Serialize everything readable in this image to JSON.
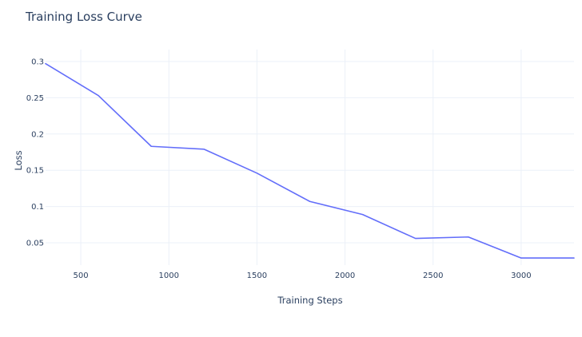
{
  "chart_data": {
    "type": "line",
    "title": "Training Loss Curve",
    "xlabel": "Training Steps",
    "ylabel": "Loss",
    "xlim": [
      300,
      3300
    ],
    "ylim": [
      0.02,
      0.3
    ],
    "x_ticks": [
      500,
      1000,
      1500,
      2000,
      2500,
      3000
    ],
    "x_tick_labels": [
      "500",
      "1000",
      "1500",
      "2000",
      "2500",
      "3000"
    ],
    "y_ticks": [
      0.05,
      0.1,
      0.15,
      0.2,
      0.25,
      0.3
    ],
    "y_tick_labels": [
      "0.05",
      "0.1",
      "0.15",
      "0.2",
      "0.25",
      "0.3"
    ],
    "grid": true,
    "series": [
      {
        "x": [
          300,
          600,
          900,
          1200,
          1500,
          1800,
          2100,
          2400,
          2700,
          3000,
          3300
        ],
        "values": [
          0.297,
          0.253,
          0.183,
          0.179,
          0.146,
          0.107,
          0.089,
          0.056,
          0.058,
          0.029,
          0.029
        ],
        "color": "#636efa"
      }
    ]
  }
}
